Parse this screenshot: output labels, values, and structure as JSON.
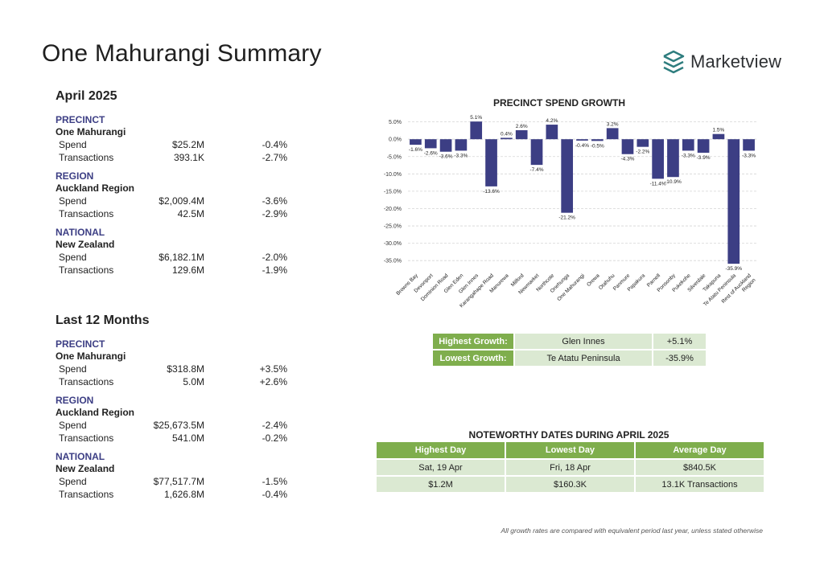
{
  "title": "One Mahurangi Summary",
  "brand": {
    "name": "Marketview",
    "color": "#2e7d7e"
  },
  "sections": [
    {
      "period": "April 2025",
      "groups": [
        {
          "label": "PRECINCT",
          "name": "One Mahurangi",
          "rows": [
            {
              "metric": "Spend",
              "value": "$25.2M",
              "change": "-0.4%"
            },
            {
              "metric": "Transactions",
              "value": "393.1K",
              "change": "-2.7%"
            }
          ]
        },
        {
          "label": "REGION",
          "name": "Auckland Region",
          "rows": [
            {
              "metric": "Spend",
              "value": "$2,009.4M",
              "change": "-3.6%"
            },
            {
              "metric": "Transactions",
              "value": "42.5M",
              "change": "-2.9%"
            }
          ]
        },
        {
          "label": "NATIONAL",
          "name": "New Zealand",
          "rows": [
            {
              "metric": "Spend",
              "value": "$6,182.1M",
              "change": "-2.0%"
            },
            {
              "metric": "Transactions",
              "value": "129.6M",
              "change": "-1.9%"
            }
          ]
        }
      ]
    },
    {
      "period": "Last 12 Months",
      "groups": [
        {
          "label": "PRECINCT",
          "name": "One Mahurangi",
          "rows": [
            {
              "metric": "Spend",
              "value": "$318.8M",
              "change": "+3.5%"
            },
            {
              "metric": "Transactions",
              "value": "5.0M",
              "change": "+2.6%"
            }
          ]
        },
        {
          "label": "REGION",
          "name": "Auckland Region",
          "rows": [
            {
              "metric": "Spend",
              "value": "$25,673.5M",
              "change": "-2.4%"
            },
            {
              "metric": "Transactions",
              "value": "541.0M",
              "change": "-0.2%"
            }
          ]
        },
        {
          "label": "NATIONAL",
          "name": "New Zealand",
          "rows": [
            {
              "metric": "Spend",
              "value": "$77,517.7M",
              "change": "-1.5%"
            },
            {
              "metric": "Transactions",
              "value": "1,626.8M",
              "change": "-0.4%"
            }
          ]
        }
      ]
    }
  ],
  "chart_data": {
    "type": "bar",
    "title": "PRECINCT SPEND GROWTH",
    "categories": [
      "Browns Bay",
      "Devonport",
      "Dominion Road",
      "Glen Eden",
      "Glen Innes",
      "Karangahape Road",
      "Manurewa",
      "Milford",
      "Newmarket",
      "Northcote",
      "Onehunga",
      "One Mahurangi",
      "Orewa",
      "Otahuhu",
      "Panmure",
      "Papakura",
      "Parnell",
      "Ponsonby",
      "Pukekohe",
      "Silverdale",
      "Takapuna",
      "Te Atatu Peninsula",
      "Rest of Auckland Region"
    ],
    "values": [
      -1.6,
      -2.6,
      -3.6,
      -3.3,
      5.1,
      -13.6,
      0.4,
      2.6,
      -7.4,
      4.2,
      -21.2,
      -0.4,
      -0.5,
      3.2,
      -4.3,
      -2.2,
      -11.4,
      -10.9,
      -3.3,
      -3.9,
      1.5,
      -35.9,
      -3.3
    ],
    "value_labels": [
      "-1.6%",
      "-2.6%",
      "-3.6%",
      "-3.3%",
      "5.1%",
      "-13.6%",
      "0.4%",
      "2.6%",
      "-7.4%",
      "4.2%",
      "-21.2%",
      "-0.4%",
      "-0.5%",
      "3.2%",
      "-4.3%",
      "-2.2%",
      "-11.4%",
      "-10.9%",
      "-3.3%",
      "-3.9%",
      "1.5%",
      "-35.9%",
      "-3.3%"
    ],
    "y_ticks": [
      "5.0%",
      "0.0%",
      "-5.0%",
      "-10.0%",
      "-15.0%",
      "-20.0%",
      "-25.0%",
      "-30.0%",
      "-35.0%"
    ],
    "y_tick_values": [
      5,
      0,
      -5,
      -10,
      -15,
      -20,
      -25,
      -30,
      -35
    ],
    "ylim": [
      -37.5,
      6.3
    ],
    "grid": true,
    "bar_color": "#3c3e84"
  },
  "growth_summary": [
    {
      "label": "Highest Growth:",
      "name": "Glen Innes",
      "value": "+5.1%"
    },
    {
      "label": "Lowest Growth:",
      "name": "Te Atatu Peninsula",
      "value": "-35.9%"
    }
  ],
  "noteworthy": {
    "title": "NOTEWORTHY DATES DURING APRIL 2025",
    "headers": [
      "Highest Day",
      "Lowest Day",
      "Average Day"
    ],
    "rows": [
      [
        "Sat, 19 Apr",
        "Fri, 18 Apr",
        "$840.5K"
      ],
      [
        "$1.2M",
        "$160.3K",
        "13.1K Transactions"
      ]
    ]
  },
  "footnote": "All growth rates are compared with equivalent period last year, unless stated otherwise",
  "colors": {
    "accent": "#3c3e84",
    "header_green": "#7fae4d",
    "cell_green": "#dbe9d2"
  }
}
